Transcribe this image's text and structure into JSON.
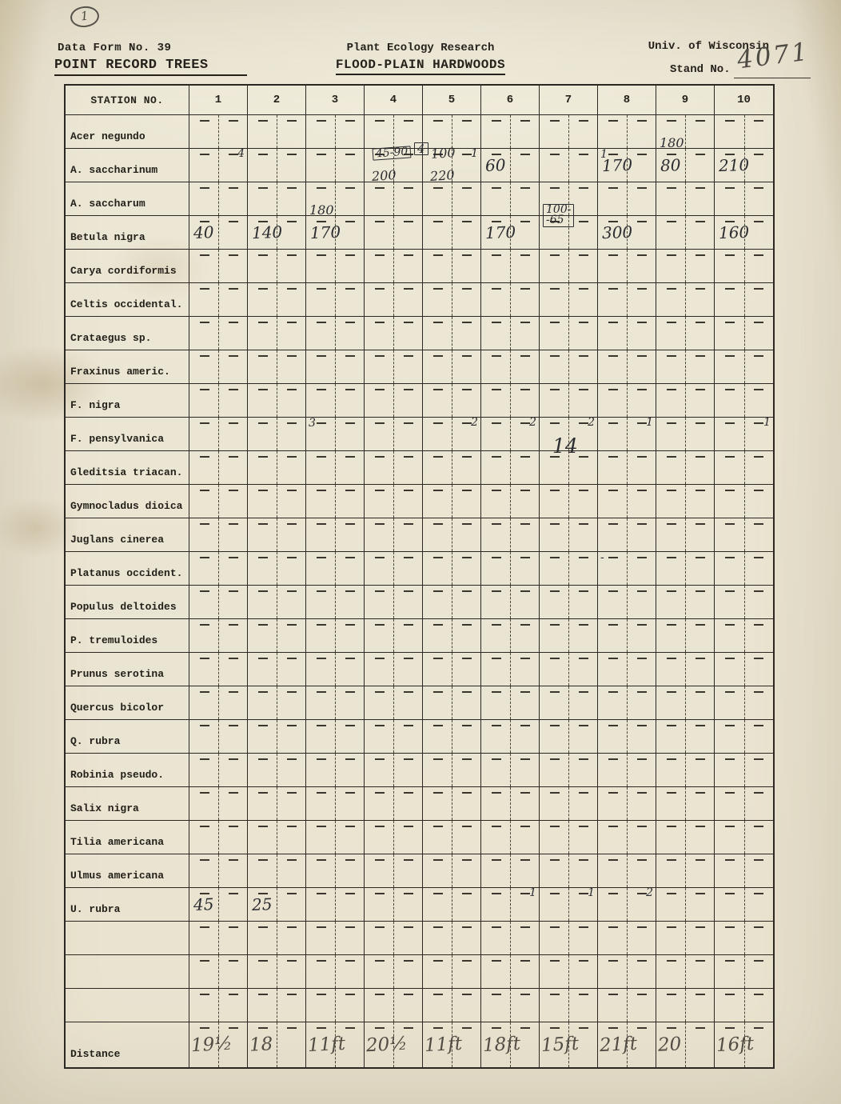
{
  "header": {
    "corner_note": "1",
    "form_no": "Data Form No. 39",
    "research_program": "Plant Ecology Research",
    "university": "Univ. of Wisconsin",
    "form_title": "POINT RECORD TREES",
    "community_title": "FLOOD-PLAIN HARDWOODS",
    "stand_label": "Stand No.",
    "stand_value": "4071"
  },
  "table": {
    "station_header": "STATION NO.",
    "stations": [
      "1",
      "2",
      "3",
      "4",
      "5",
      "6",
      "7",
      "8",
      "9",
      "10"
    ],
    "rows": [
      {
        "species": "Acer negundo",
        "entries": []
      },
      {
        "species": "A. saccharinum",
        "entries": [
          {
            "station": 1,
            "text": "4",
            "pos": "tr",
            "size": "sm"
          },
          {
            "station": 4,
            "text": "45-90",
            "pos": "t",
            "boxed": true,
            "size": "sm"
          },
          {
            "station": 4,
            "text": "200",
            "pos": "b"
          },
          {
            "station": 5,
            "text": "4",
            "pos": "tl-edge",
            "boxed": true
          },
          {
            "station": 5,
            "text": "100",
            "pos": "t"
          },
          {
            "station": 5,
            "text": "220",
            "pos": "b"
          },
          {
            "station": 5,
            "text": "1",
            "pos": "tr",
            "size": "sm"
          },
          {
            "station": 6,
            "text": "60",
            "pos": "c"
          },
          {
            "station": 8,
            "text": "1",
            "pos": "tl",
            "size": "sm"
          },
          {
            "station": 8,
            "text": "170",
            "pos": "c"
          },
          {
            "station": 9,
            "text": "180",
            "pos": "t-up"
          },
          {
            "station": 9,
            "text": "80",
            "pos": "c"
          },
          {
            "station": 10,
            "text": "210",
            "pos": "c"
          }
        ]
      },
      {
        "species": "A. saccharum",
        "entries": []
      },
      {
        "species": "Betula nigra",
        "entries": [
          {
            "station": 1,
            "text": "40",
            "pos": "c"
          },
          {
            "station": 2,
            "text": "140",
            "pos": "c"
          },
          {
            "station": 3,
            "text": "180",
            "pos": "t-up"
          },
          {
            "station": 3,
            "text": "170",
            "pos": "c"
          },
          {
            "station": 6,
            "text": "170",
            "pos": "c"
          },
          {
            "station": 7,
            "text": "100-\n-65",
            "pos": "t-up",
            "boxed": true,
            "size": "sm"
          },
          {
            "station": 8,
            "text": "300",
            "pos": "c"
          },
          {
            "station": 10,
            "text": "160",
            "pos": "c"
          }
        ]
      },
      {
        "species": "Carya cordiformis",
        "entries": []
      },
      {
        "species": "Celtis occidental.",
        "entries": []
      },
      {
        "species": "Crataegus sp.",
        "entries": []
      },
      {
        "species": "Fraxinus americ.",
        "entries": []
      },
      {
        "species": "F. nigra",
        "entries": []
      },
      {
        "species": "F. pensylvanica",
        "entries": [
          {
            "station": 3,
            "text": "3",
            "pos": "tl",
            "size": "sm"
          },
          {
            "station": 5,
            "text": "2",
            "pos": "tr",
            "size": "sm"
          },
          {
            "station": 6,
            "text": "2",
            "pos": "tr",
            "size": "sm"
          },
          {
            "station": 7,
            "text": "2",
            "pos": "tr",
            "size": "sm"
          },
          {
            "station": 7,
            "text": "14",
            "pos": "b-over",
            "size": "lg"
          },
          {
            "station": 8,
            "text": "1",
            "pos": "tr",
            "size": "sm"
          },
          {
            "station": 10,
            "text": "1",
            "pos": "tr",
            "size": "sm"
          }
        ]
      },
      {
        "species": "Gleditsia triacan.",
        "entries": []
      },
      {
        "species": "Gymnocladus dioica",
        "entries": []
      },
      {
        "species": "Juglans cinerea",
        "entries": []
      },
      {
        "species": "Platanus occident.",
        "entries": [
          {
            "station": 8,
            "text": "-",
            "pos": "tl",
            "size": "sm"
          }
        ]
      },
      {
        "species": "Populus deltoides",
        "entries": []
      },
      {
        "species": "P. tremuloides",
        "entries": []
      },
      {
        "species": "Prunus serotina",
        "entries": []
      },
      {
        "species": "Quercus bicolor",
        "entries": []
      },
      {
        "species": "Q. rubra",
        "entries": []
      },
      {
        "species": "Robinia pseudo.",
        "entries": []
      },
      {
        "species": "Salix nigra",
        "entries": []
      },
      {
        "species": "Tilia americana",
        "entries": []
      },
      {
        "species": "Ulmus americana",
        "entries": []
      },
      {
        "species": "U. rubra",
        "entries": [
          {
            "station": 1,
            "text": "45",
            "pos": "c"
          },
          {
            "station": 2,
            "text": "25",
            "pos": "c"
          },
          {
            "station": 6,
            "text": "1",
            "pos": "tr",
            "size": "sm"
          },
          {
            "station": 7,
            "text": "1",
            "pos": "tr",
            "size": "sm"
          },
          {
            "station": 8,
            "text": "2",
            "pos": "tr",
            "size": "sm"
          }
        ]
      },
      {
        "species": "",
        "entries": []
      },
      {
        "species": "",
        "entries": []
      },
      {
        "species": "",
        "entries": []
      }
    ],
    "distance": {
      "label": "Distance",
      "values": [
        "19½",
        "18",
        "11ft",
        "20½",
        "11ft",
        "18ft",
        "15ft",
        "21ft",
        "20",
        "16ft"
      ]
    }
  }
}
